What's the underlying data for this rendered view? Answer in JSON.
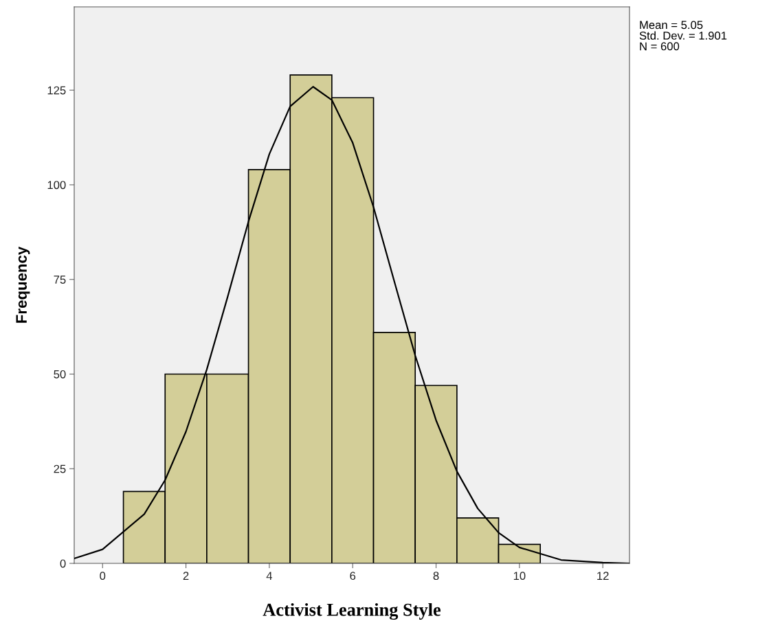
{
  "chart_data": {
    "type": "histogram",
    "xlabel": "Activist Learning Style",
    "ylabel": "Frequency",
    "bins": [
      0.5,
      1.5,
      2.5,
      3.5,
      4.5,
      5.5,
      6.5,
      7.5,
      8.5,
      9.5,
      10.5
    ],
    "values": [
      19,
      50,
      50,
      104,
      129,
      123,
      61,
      47,
      12,
      5
    ],
    "color": "#d3ce98",
    "series": [
      {
        "type": "line",
        "color": "#000000",
        "x": [
          -0.68,
          0,
          1,
          1.5,
          2,
          2.5,
          3,
          3.5,
          4,
          4.5,
          5.05,
          5.5,
          6,
          6.5,
          7,
          7.5,
          8,
          8.5,
          9,
          9.5,
          10,
          11,
          12,
          12.64
        ],
        "values": [
          1.3,
          3.7,
          13.0,
          22.0,
          34.8,
          51.2,
          70.4,
          90.3,
          108.1,
          120.7,
          125.9,
          122.4,
          111.1,
          94.1,
          74.4,
          54.9,
          37.8,
          24.3,
          14.5,
          8.1,
          4.2,
          0.9,
          0.2,
          0.0
        ]
      }
    ],
    "annotations": [
      "Mean = 5.05\nStd. Dev. = 1.901\nN = 600"
    ],
    "xlim": [
      -0.68,
      12.64
    ],
    "ylim": [
      0,
      147
    ],
    "xticks": [
      0,
      2,
      4,
      6,
      8,
      10,
      12
    ],
    "yticks": [
      0,
      25,
      50,
      75,
      100,
      125
    ],
    "grid": false,
    "legend": false,
    "marker": "none",
    "line_style": "solid"
  }
}
